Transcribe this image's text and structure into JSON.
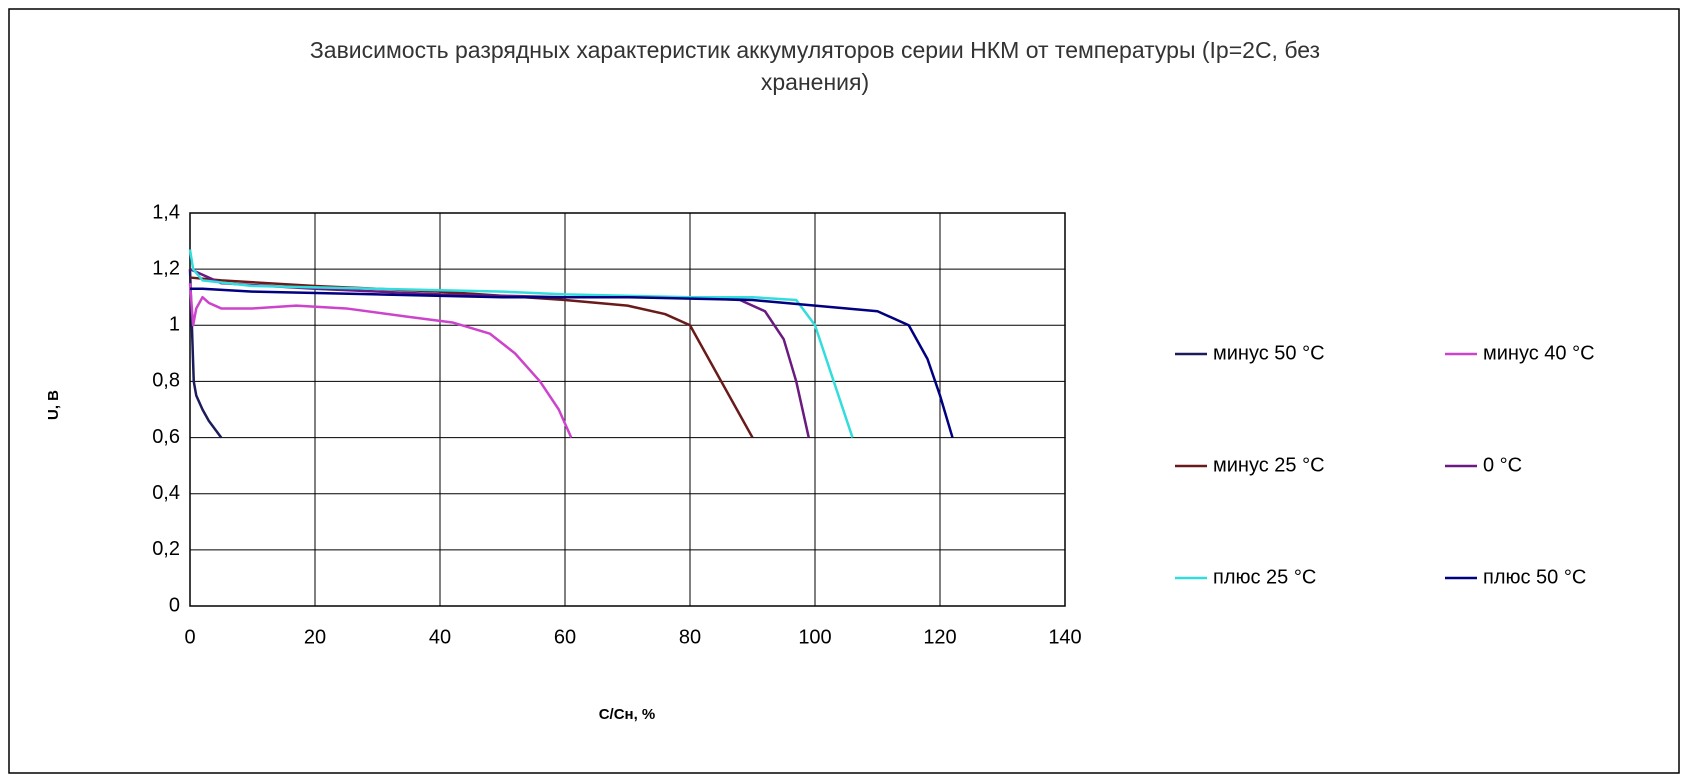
{
  "chart_data": {
    "type": "line",
    "title": [
      "Зависимость разрядных характеристик аккумуляторов серии НКМ от  температуры (Iр=2С, без",
      "хранения)"
    ],
    "x_label": "С/Сн, %",
    "y_label": "U, В",
    "xlim": [
      0,
      140
    ],
    "xticks": [
      0,
      20,
      40,
      60,
      80,
      100,
      120,
      140
    ],
    "ylim": [
      0,
      1.4
    ],
    "yticks": [
      0,
      {
        "value": 0.2,
        "label": "0,2"
      },
      {
        "value": 0.4,
        "label": "0,4"
      },
      {
        "value": 0.6,
        "label": "0,6"
      },
      {
        "value": 0.8,
        "label": "0,8"
      },
      1,
      {
        "value": 1.2,
        "label": "1,2"
      },
      {
        "value": 1.4,
        "label": "1,4"
      }
    ],
    "grid": true,
    "series": [
      {
        "name": "минус 50 °С",
        "color": "#1c1c5c",
        "x": [
          0,
          0.3,
          0.6,
          1,
          2,
          3,
          5
        ],
        "values": [
          1.2,
          1.0,
          0.8,
          0.75,
          0.7,
          0.66,
          0.6
        ]
      },
      {
        "name": "минус 40 °С",
        "color": "#cc44cc",
        "x": [
          0,
          0.5,
          1,
          2,
          3,
          5,
          10,
          17,
          25,
          35,
          42,
          48,
          52,
          56,
          59,
          61
        ],
        "values": [
          1.15,
          1.0,
          1.06,
          1.1,
          1.08,
          1.06,
          1.06,
          1.07,
          1.06,
          1.03,
          1.01,
          0.97,
          0.9,
          0.8,
          0.7,
          0.6
        ]
      },
      {
        "name": "минус 25 °С",
        "color": "#6b1a1a",
        "x": [
          0,
          5,
          20,
          40,
          60,
          70,
          76,
          80,
          82,
          85,
          88,
          90
        ],
        "values": [
          1.17,
          1.16,
          1.14,
          1.12,
          1.09,
          1.07,
          1.04,
          1.0,
          0.92,
          0.8,
          0.68,
          0.6
        ]
      },
      {
        "name": "0 °С",
        "color": "#6a1a80",
        "x": [
          0,
          5,
          20,
          40,
          60,
          80,
          88,
          92,
          95,
          97,
          99
        ],
        "values": [
          1.2,
          1.15,
          1.13,
          1.11,
          1.1,
          1.1,
          1.09,
          1.05,
          0.95,
          0.8,
          0.6
        ]
      },
      {
        "name": "плюс 25 °С",
        "color": "#33dddd",
        "x": [
          0,
          0.5,
          2,
          10,
          30,
          50,
          60,
          80,
          90,
          97,
          100,
          103,
          106
        ],
        "values": [
          1.27,
          1.2,
          1.16,
          1.14,
          1.13,
          1.12,
          1.11,
          1.1,
          1.1,
          1.09,
          1.0,
          0.8,
          0.6
        ]
      },
      {
        "name": "плюс 50 °С",
        "color": "#000080",
        "x": [
          0,
          2,
          10,
          30,
          50,
          70,
          90,
          100,
          110,
          115,
          118,
          120,
          122
        ],
        "values": [
          1.13,
          1.13,
          1.12,
          1.11,
          1.1,
          1.1,
          1.09,
          1.07,
          1.05,
          1.0,
          0.88,
          0.75,
          0.6
        ]
      }
    ]
  }
}
